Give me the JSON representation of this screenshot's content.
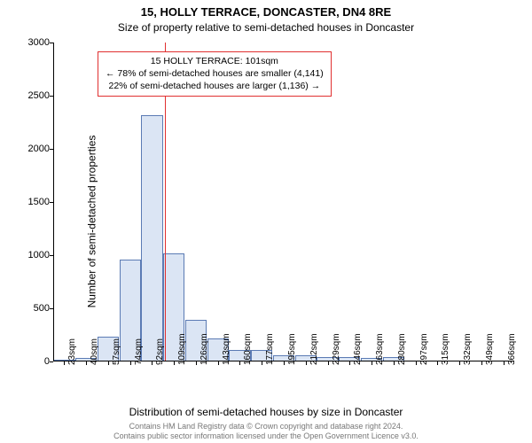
{
  "title": "15, HOLLY TERRACE, DONCASTER, DN4 8RE",
  "subtitle": "Size of property relative to semi-detached houses in Doncaster",
  "ylabel": "Number of semi-detached properties",
  "xlabel": "Distribution of semi-detached houses by size in Doncaster",
  "chart": {
    "type": "histogram",
    "background_color": "#ffffff",
    "axis_color": "#000000",
    "bar_fill": "#dbe5f4",
    "bar_stroke": "#5b7bb4",
    "bar_width": 0.98,
    "refline_color": "#e03030",
    "ylim": [
      0,
      3000
    ],
    "ytick_step": 500,
    "xtick_labels": [
      "23sqm",
      "40sqm",
      "57sqm",
      "74sqm",
      "92sqm",
      "109sqm",
      "126sqm",
      "143sqm",
      "160sqm",
      "177sqm",
      "195sqm",
      "212sqm",
      "229sqm",
      "246sqm",
      "263sqm",
      "280sqm",
      "297sqm",
      "315sqm",
      "332sqm",
      "349sqm",
      "366sqm"
    ],
    "n_bins": 21,
    "values": [
      20,
      30,
      230,
      960,
      2320,
      1020,
      390,
      220,
      110,
      110,
      55,
      55,
      40,
      45,
      30,
      40,
      5,
      5,
      5,
      5,
      5
    ],
    "ref_bin_index": 4.6,
    "annotation": {
      "line1": "15 HOLLY TERRACE: 101sqm",
      "line2": "← 78% of semi-detached houses are smaller (4,141)",
      "line3": "22% of semi-detached houses are larger (1,136) →",
      "border_color": "#e03030",
      "text_color": "#000000",
      "fontsize": 10.5
    },
    "title_fontsize": 13,
    "subtitle_fontsize": 12,
    "label_fontsize": 12,
    "tick_fontsize": 11
  },
  "attribution": {
    "line1": "Contains HM Land Registry data © Crown copyright and database right 2024.",
    "line2": "Contains public sector information licensed under the Open Government Licence v3.0."
  }
}
